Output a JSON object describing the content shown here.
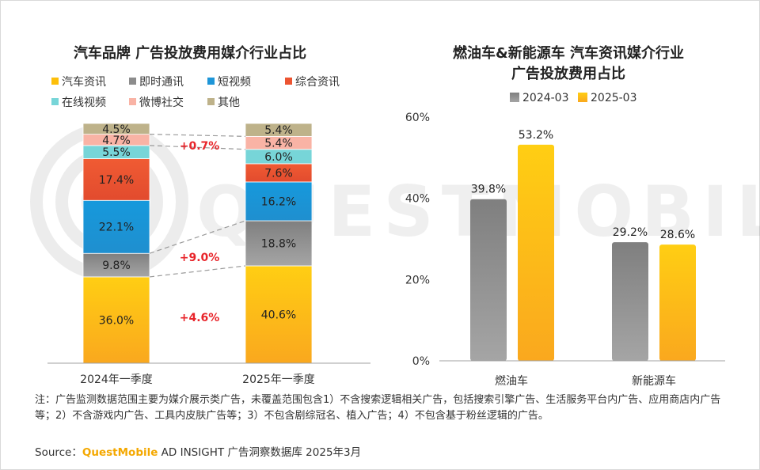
{
  "chart_data": [
    {
      "type": "bar",
      "stacked": true,
      "title": "汽车品牌 广告投放费用媒介行业占比",
      "categories": [
        "2024年一季度",
        "2025年一季度"
      ],
      "series": [
        {
          "name": "汽车资讯",
          "color": "#FDBF0A",
          "values": [
            36.0,
            40.6
          ],
          "labels": [
            "36.0%",
            "40.6%"
          ]
        },
        {
          "name": "即时通讯",
          "color": "#8C8C8C",
          "values": [
            9.8,
            18.8
          ],
          "labels": [
            "9.8%",
            "18.8%"
          ]
        },
        {
          "name": "短视频",
          "color": "#1E96D8",
          "values": [
            22.1,
            16.2
          ],
          "labels": [
            "22.1%",
            "16.2%"
          ]
        },
        {
          "name": "综合资讯",
          "color": "#EC5431",
          "values": [
            17.4,
            7.6
          ],
          "labels": [
            "17.4%",
            "7.6%"
          ]
        },
        {
          "name": "在线视频",
          "color": "#77D5D8",
          "values": [
            5.5,
            6.0
          ],
          "labels": [
            "5.5%",
            "6.0%"
          ]
        },
        {
          "name": "微博社交",
          "color": "#F9B3A5",
          "values": [
            4.7,
            5.4
          ],
          "labels": [
            "4.7%",
            "5.4%"
          ]
        },
        {
          "name": "其他",
          "color": "#BEB28A",
          "values": [
            4.5,
            5.4
          ],
          "labels": [
            "4.5%",
            "5.4%"
          ]
        }
      ],
      "annotations": [
        "+0.7%",
        "+9.0%",
        "+4.6%"
      ],
      "legend": "top"
    },
    {
      "type": "bar",
      "title_line1": "燃油车&新能源车 汽车资讯媒介行业",
      "title_line2": "广告投放费用占比",
      "categories": [
        "燃油车",
        "新能源车"
      ],
      "series": [
        {
          "name": "2024-03",
          "color": "#8E8E8E",
          "values": [
            39.8,
            29.2
          ],
          "labels": [
            "39.8%",
            "29.2%"
          ]
        },
        {
          "name": "2025-03",
          "color": "#FDBF0A",
          "values": [
            53.2,
            28.6
          ],
          "labels": [
            "53.2%",
            "28.6%"
          ]
        }
      ],
      "ylim": [
        0,
        60
      ],
      "yticks": [
        "0%",
        "20%",
        "40%",
        "60%"
      ],
      "legend": "top"
    }
  ],
  "watermark": "QUESTMOBILE",
  "note": "注：广告监测数据范围主要为媒介展示类广告，未覆盖范围包含1）不含搜索逻辑相关广告，包括搜索引擎广告、生活服务平台内广告、应用商店内广告等；2）不含游戏内广告、工具内皮肤广告等；3）不包含剧综冠名、植入广告；4）不包含基于粉丝逻辑的广告。",
  "source": {
    "prefix": "Source：",
    "brand": "QuestMobile",
    "suffix": " AD INSIGHT 广告洞察数据库 2025年3月"
  }
}
